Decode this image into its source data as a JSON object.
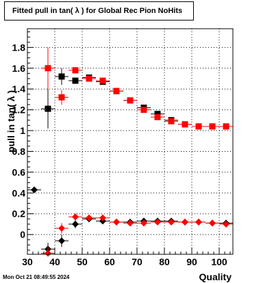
{
  "chart_data": {
    "type": "scatter",
    "title": "Fitted pull in tan( λ ) for Global Rec Pion NoHits",
    "xlabel": "Quality",
    "ylabel": "pull in tan( λ )",
    "xlim": [
      30,
      105
    ],
    "ylim": [
      -0.19,
      1.98
    ],
    "x_ticks": [
      30,
      40,
      50,
      60,
      70,
      80,
      90,
      100
    ],
    "y_ticks": [
      0,
      0.2,
      0.4,
      0.6,
      0.8,
      1,
      1.2,
      1.4,
      1.6,
      1.8
    ],
    "grid": true,
    "series": [
      {
        "color": "#000000",
        "marker": "square",
        "points": [
          {
            "x": 37.5,
            "y": 1.21,
            "yerr": 0.19,
            "xerr": 2.5
          },
          {
            "x": 42.5,
            "y": 1.52,
            "yerr": 0.08,
            "xerr": 2.5
          },
          {
            "x": 47.5,
            "y": 1.48,
            "yerr": 0.03,
            "xerr": 2.5
          },
          {
            "x": 52.5,
            "y": 1.51,
            "yerr": 0.02,
            "xerr": 2.5
          },
          {
            "x": 57.5,
            "y": 1.47,
            "yerr": 0.02,
            "xerr": 2.5
          },
          {
            "x": 62.5,
            "y": 1.38,
            "yerr": 0.02,
            "xerr": 2.5
          },
          {
            "x": 67.5,
            "y": 1.29,
            "yerr": 0.02,
            "xerr": 2.5
          },
          {
            "x": 72.5,
            "y": 1.22,
            "yerr": 0.02,
            "xerr": 2.5
          },
          {
            "x": 77.5,
            "y": 1.16,
            "yerr": 0.02,
            "xerr": 2.5
          },
          {
            "x": 82.5,
            "y": 1.1,
            "yerr": 0.02,
            "xerr": 2.5
          },
          {
            "x": 87.5,
            "y": 1.06,
            "yerr": 0.02,
            "xerr": 2.5
          },
          {
            "x": 92.5,
            "y": 1.04,
            "yerr": 0.02,
            "xerr": 2.5
          },
          {
            "x": 97.5,
            "y": 1.04,
            "yerr": 0.02,
            "xerr": 2.5
          },
          {
            "x": 102.5,
            "y": 1.04,
            "yerr": 0.02,
            "xerr": 2.5
          }
        ]
      },
      {
        "color": "#ff0000",
        "marker": "square",
        "points": [
          {
            "x": 37.5,
            "y": 1.6,
            "yerr": 0.2,
            "xerr": 2.5
          },
          {
            "x": 42.5,
            "y": 1.32,
            "yerr": 0.07,
            "xerr": 2.5
          },
          {
            "x": 47.5,
            "y": 1.58,
            "yerr": 0.03,
            "xerr": 2.5
          },
          {
            "x": 52.5,
            "y": 1.5,
            "yerr": 0.02,
            "xerr": 2.5
          },
          {
            "x": 57.5,
            "y": 1.48,
            "yerr": 0.02,
            "xerr": 2.5
          },
          {
            "x": 62.5,
            "y": 1.38,
            "yerr": 0.02,
            "xerr": 2.5
          },
          {
            "x": 67.5,
            "y": 1.29,
            "yerr": 0.02,
            "xerr": 2.5
          },
          {
            "x": 72.5,
            "y": 1.2,
            "yerr": 0.02,
            "xerr": 2.5
          },
          {
            "x": 77.5,
            "y": 1.13,
            "yerr": 0.02,
            "xerr": 2.5
          },
          {
            "x": 82.5,
            "y": 1.09,
            "yerr": 0.02,
            "xerr": 2.5
          },
          {
            "x": 87.5,
            "y": 1.06,
            "yerr": 0.02,
            "xerr": 2.5
          },
          {
            "x": 92.5,
            "y": 1.04,
            "yerr": 0.02,
            "xerr": 2.5
          },
          {
            "x": 97.5,
            "y": 1.04,
            "yerr": 0.02,
            "xerr": 2.5
          },
          {
            "x": 102.5,
            "y": 1.04,
            "yerr": 0.02,
            "xerr": 2.5
          }
        ]
      },
      {
        "color": "#000000",
        "marker": "diamond",
        "points": [
          {
            "x": 32.5,
            "y": 0.43,
            "yerr": 0,
            "xerr": 2.5
          },
          {
            "x": 37.5,
            "y": -0.14,
            "yerr": 0.06,
            "xerr": 2.5
          },
          {
            "x": 42.5,
            "y": -0.06,
            "yerr": 0.06,
            "xerr": 2.5
          },
          {
            "x": 47.5,
            "y": 0.1,
            "yerr": 0.04,
            "xerr": 2.5
          },
          {
            "x": 52.5,
            "y": 0.15,
            "yerr": 0.02,
            "xerr": 2.5
          },
          {
            "x": 57.5,
            "y": 0.13,
            "yerr": 0.01,
            "xerr": 2.5
          },
          {
            "x": 62.5,
            "y": 0.12,
            "yerr": 0.01,
            "xerr": 2.5
          },
          {
            "x": 67.5,
            "y": 0.12,
            "yerr": 0.01,
            "xerr": 2.5
          },
          {
            "x": 72.5,
            "y": 0.13,
            "yerr": 0.01,
            "xerr": 2.5
          },
          {
            "x": 77.5,
            "y": 0.13,
            "yerr": 0.01,
            "xerr": 2.5
          },
          {
            "x": 82.5,
            "y": 0.13,
            "yerr": 0.01,
            "xerr": 2.5
          },
          {
            "x": 87.5,
            "y": 0.12,
            "yerr": 0.01,
            "xerr": 2.5
          },
          {
            "x": 92.5,
            "y": 0.12,
            "yerr": 0.01,
            "xerr": 2.5
          },
          {
            "x": 97.5,
            "y": 0.11,
            "yerr": 0.01,
            "xerr": 2.5
          },
          {
            "x": 102.5,
            "y": 0.11,
            "yerr": 0.01,
            "xerr": 2.5
          }
        ]
      },
      {
        "color": "#ff0000",
        "marker": "diamond",
        "points": [
          {
            "x": 37.5,
            "y": -0.18,
            "yerr": 0.06,
            "xerr": 2.5
          },
          {
            "x": 42.5,
            "y": 0.06,
            "yerr": 0.05,
            "xerr": 2.5
          },
          {
            "x": 47.5,
            "y": 0.17,
            "yerr": 0.03,
            "xerr": 2.5
          },
          {
            "x": 52.5,
            "y": 0.16,
            "yerr": 0.02,
            "xerr": 2.5
          },
          {
            "x": 57.5,
            "y": 0.16,
            "yerr": 0.01,
            "xerr": 2.5
          },
          {
            "x": 62.5,
            "y": 0.12,
            "yerr": 0.01,
            "xerr": 2.5
          },
          {
            "x": 67.5,
            "y": 0.11,
            "yerr": 0.01,
            "xerr": 2.5
          },
          {
            "x": 72.5,
            "y": 0.11,
            "yerr": 0.01,
            "xerr": 2.5
          },
          {
            "x": 77.5,
            "y": 0.12,
            "yerr": 0.01,
            "xerr": 2.5
          },
          {
            "x": 82.5,
            "y": 0.12,
            "yerr": 0.01,
            "xerr": 2.5
          },
          {
            "x": 87.5,
            "y": 0.12,
            "yerr": 0.01,
            "xerr": 2.5
          },
          {
            "x": 92.5,
            "y": 0.12,
            "yerr": 0.01,
            "xerr": 2.5
          },
          {
            "x": 97.5,
            "y": 0.11,
            "yerr": 0.01,
            "xerr": 2.5
          },
          {
            "x": 102.5,
            "y": 0.1,
            "yerr": 0.01,
            "xerr": 2.5
          }
        ]
      }
    ]
  },
  "timestamp": "Mon Oct 21 08:49:55 2024"
}
